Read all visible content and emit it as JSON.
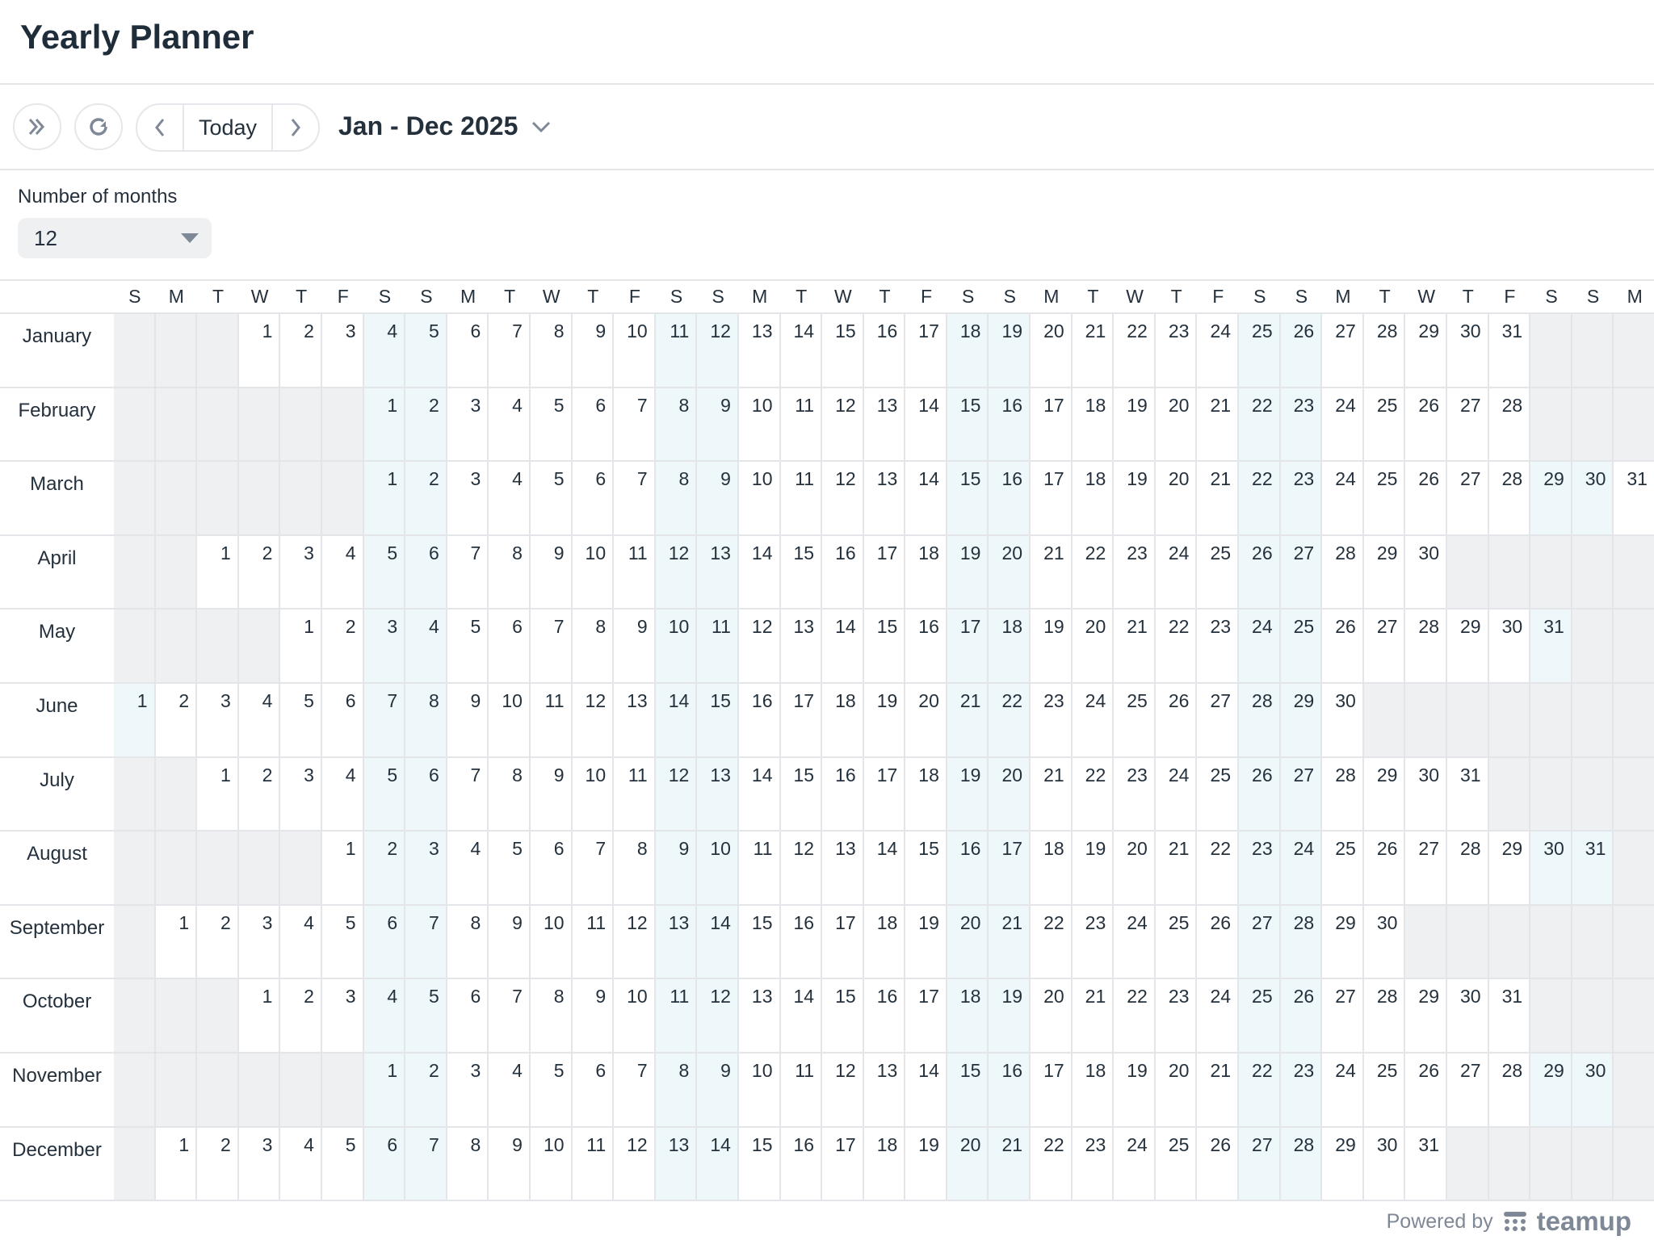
{
  "header": {
    "title": "Yearly Planner"
  },
  "toolbar": {
    "collapse_icon": "double-chevron-right-icon",
    "refresh_icon": "refresh-icon",
    "prev_icon": "chevron-left-icon",
    "today_label": "Today",
    "next_icon": "chevron-right-icon",
    "range_label": "Jan - Dec 2025",
    "range_icon": "chevron-down-icon"
  },
  "options": {
    "months_label": "Number of months",
    "months_value": "12"
  },
  "calendar": {
    "year": 2025,
    "weekday_headers": [
      "S",
      "M",
      "T",
      "W",
      "T",
      "F",
      "S",
      "S",
      "M",
      "T",
      "W",
      "T",
      "F",
      "S",
      "S",
      "M",
      "T",
      "W",
      "T",
      "F",
      "S",
      "S",
      "M",
      "T",
      "W",
      "T",
      "F",
      "S",
      "S",
      "M",
      "T",
      "W",
      "T",
      "F",
      "S",
      "S",
      "M"
    ],
    "months": [
      {
        "name": "January",
        "first_weekday": 3,
        "days": 31
      },
      {
        "name": "February",
        "first_weekday": 6,
        "days": 28
      },
      {
        "name": "March",
        "first_weekday": 6,
        "days": 31
      },
      {
        "name": "April",
        "first_weekday": 2,
        "days": 30
      },
      {
        "name": "May",
        "first_weekday": 4,
        "days": 31
      },
      {
        "name": "June",
        "first_weekday": 0,
        "days": 30
      },
      {
        "name": "July",
        "first_weekday": 2,
        "days": 31
      },
      {
        "name": "August",
        "first_weekday": 5,
        "days": 31
      },
      {
        "name": "September",
        "first_weekday": 1,
        "days": 30
      },
      {
        "name": "October",
        "first_weekday": 3,
        "days": 31
      },
      {
        "name": "November",
        "first_weekday": 6,
        "days": 30
      },
      {
        "name": "December",
        "first_weekday": 1,
        "days": 31
      }
    ],
    "colors": {
      "weekend": "#eef7f9",
      "empty": "#eff0f2"
    }
  },
  "footer": {
    "powered_by": "Powered by",
    "brand": "teamup"
  }
}
